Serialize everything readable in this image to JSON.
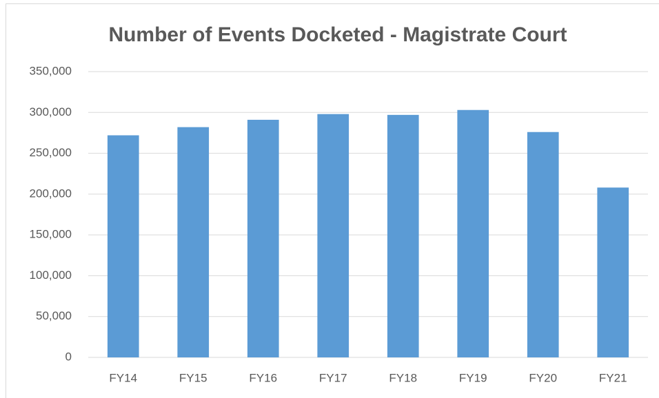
{
  "chart_data": {
    "type": "bar",
    "title": "Number of Events Docketed - Magistrate Court",
    "categories": [
      "FY14",
      "FY15",
      "FY16",
      "FY17",
      "FY18",
      "FY19",
      "FY20",
      "FY21"
    ],
    "values": [
      272000,
      282000,
      291000,
      298000,
      297000,
      303000,
      276000,
      208000
    ],
    "color": "#5b9bd5",
    "ylim": [
      0,
      350000
    ],
    "yticks": [
      0,
      {
        "value": 50000,
        "label": "50,000"
      },
      {
        "value": 100000,
        "label": "100,000"
      },
      {
        "value": 150000,
        "label": "150,000"
      },
      {
        "value": 200000,
        "label": "200,000"
      },
      {
        "value": 250000,
        "label": "250,000"
      },
      {
        "value": 300000,
        "label": "300,000"
      },
      {
        "value": 350000,
        "label": "350,000"
      }
    ],
    "grid": true
  }
}
